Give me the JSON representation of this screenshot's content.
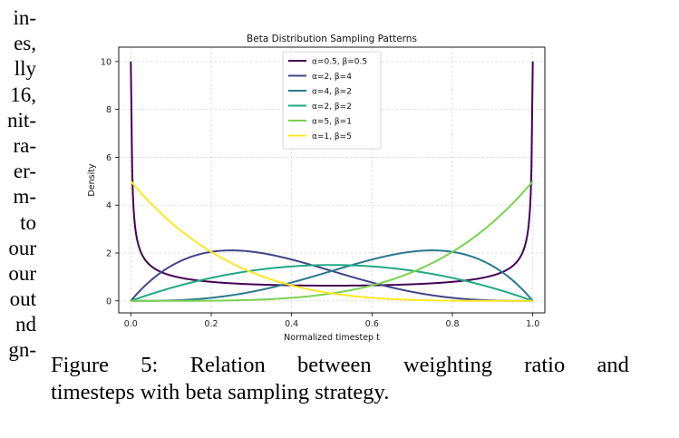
{
  "left_column_fragments": [
    "in-",
    "es,",
    "lly",
    "16,",
    "nit-",
    "ra-",
    "er-",
    "m-",
    "to",
    "our",
    "our",
    "out",
    "nd",
    "gn-"
  ],
  "caption": {
    "line1_words": [
      "Figure",
      "5:",
      "Relation",
      "between",
      "weighting",
      "ratio",
      "and"
    ],
    "line2": "timesteps with beta sampling strategy."
  },
  "chart_data": {
    "type": "line",
    "title": "Beta Distribution Sampling Patterns",
    "xlabel": "Normalized timestep t",
    "ylabel": "Density",
    "xlim": [
      -0.03,
      1.03
    ],
    "ylim": [
      -0.5,
      10.6
    ],
    "xticks": [
      0.0,
      0.2,
      0.4,
      0.6,
      0.8,
      1.0
    ],
    "xtick_labels": [
      "0.0",
      "0.2",
      "0.4",
      "0.6",
      "0.8",
      "1.0"
    ],
    "yticks": [
      0,
      2,
      4,
      6,
      8,
      10
    ],
    "ytick_labels": [
      "0",
      "2",
      "4",
      "6",
      "8",
      "10"
    ],
    "grid": true,
    "legend_position": "top-center",
    "x_range_sampled": [
      0.0,
      1.0
    ],
    "clip_max": 10.0,
    "series": [
      {
        "name": "α=0.5, β=0.5",
        "alpha": 0.5,
        "beta": 0.5,
        "color": "#440154"
      },
      {
        "name": "α=2, β=4",
        "alpha": 2,
        "beta": 4,
        "color": "#414487"
      },
      {
        "name": "α=4, β=2",
        "alpha": 4,
        "beta": 2,
        "color": "#2a788e"
      },
      {
        "name": "α=2, β=2",
        "alpha": 2,
        "beta": 2,
        "color": "#22a884"
      },
      {
        "name": "α=5, β=1",
        "alpha": 5,
        "beta": 1,
        "color": "#7ad151"
      },
      {
        "name": "α=1, β=5",
        "alpha": 1,
        "beta": 5,
        "color": "#fde725"
      }
    ]
  }
}
